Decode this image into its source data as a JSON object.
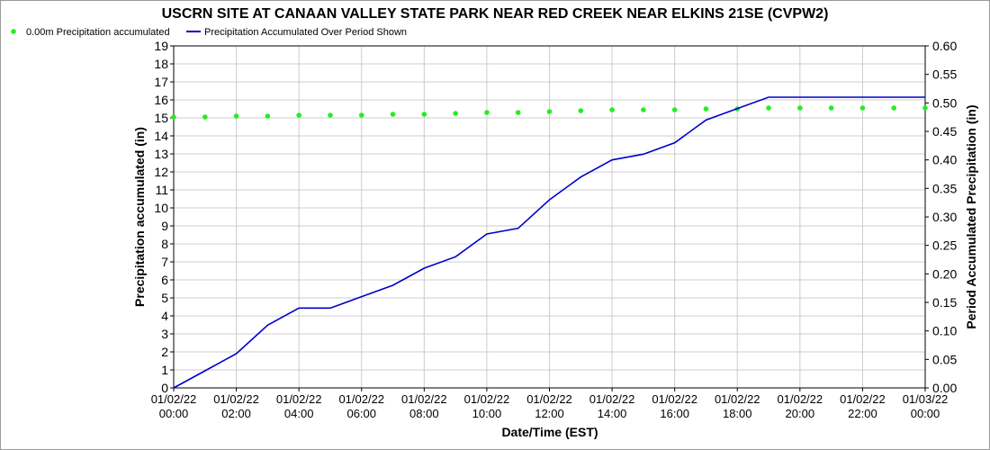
{
  "chart_data": {
    "type": "line",
    "title": "USCRN SITE AT CANAAN VALLEY STATE PARK NEAR RED CREEK NEAR ELKINS 21SE (CVPW2)",
    "xlabel": "Date/Time (EST)",
    "ylabel_left": "Precipitation accumulated (in)",
    "ylabel_right": "Period Accumulated Precipitation (in)",
    "ylim_left": [
      0,
      19
    ],
    "ylim_right": [
      0,
      0.6
    ],
    "yticks_left": [
      "0",
      "1",
      "2",
      "3",
      "4",
      "5",
      "6",
      "7",
      "8",
      "9",
      "10",
      "11",
      "12",
      "13",
      "14",
      "15",
      "16",
      "17",
      "18",
      "19"
    ],
    "yticks_right": [
      "0.00",
      "0.05",
      "0.10",
      "0.15",
      "0.20",
      "0.25",
      "0.30",
      "0.35",
      "0.40",
      "0.45",
      "0.50",
      "0.55",
      "0.60"
    ],
    "x_hours_range": [
      0,
      24
    ],
    "x_tick_labels": [
      {
        "date": "01/02/22",
        "time": "00:00"
      },
      {
        "date": "01/02/22",
        "time": "02:00"
      },
      {
        "date": "01/02/22",
        "time": "04:00"
      },
      {
        "date": "01/02/22",
        "time": "06:00"
      },
      {
        "date": "01/02/22",
        "time": "08:00"
      },
      {
        "date": "01/02/22",
        "time": "10:00"
      },
      {
        "date": "01/02/22",
        "time": "12:00"
      },
      {
        "date": "01/02/22",
        "time": "14:00"
      },
      {
        "date": "01/02/22",
        "time": "16:00"
      },
      {
        "date": "01/02/22",
        "time": "18:00"
      },
      {
        "date": "01/02/22",
        "time": "20:00"
      },
      {
        "date": "01/02/22",
        "time": "22:00"
      },
      {
        "date": "01/03/22",
        "time": "00:00"
      }
    ],
    "grid": true,
    "legend_position": "top-left",
    "series": [
      {
        "name": "0.00m Precipitation accumulated",
        "kind": "scatter",
        "axis": "left",
        "color": "#22ee22",
        "x": [
          0,
          1,
          2,
          3,
          4,
          5,
          6,
          7,
          8,
          9,
          10,
          11,
          12,
          13,
          14,
          15,
          16,
          17,
          18,
          19,
          20,
          21,
          22,
          23,
          24
        ],
        "y": [
          15.05,
          15.05,
          15.1,
          15.1,
          15.15,
          15.15,
          15.15,
          15.2,
          15.2,
          15.25,
          15.3,
          15.3,
          15.35,
          15.4,
          15.45,
          15.45,
          15.45,
          15.5,
          15.5,
          15.55,
          15.55,
          15.55,
          15.55,
          15.55,
          15.55
        ]
      },
      {
        "name": "Precipitation Accumulated Over Period Shown",
        "kind": "line",
        "axis": "right",
        "color": "#0000cc",
        "x": [
          0,
          1,
          2,
          3,
          4,
          5,
          6,
          7,
          8,
          9,
          10,
          11,
          12,
          13,
          14,
          15,
          16,
          17,
          18,
          19,
          20,
          21,
          22,
          23,
          24
        ],
        "y": [
          0.0,
          0.03,
          0.06,
          0.11,
          0.14,
          0.14,
          0.16,
          0.18,
          0.21,
          0.23,
          0.27,
          0.28,
          0.33,
          0.37,
          0.4,
          0.41,
          0.43,
          0.47,
          0.49,
          0.51,
          0.51,
          0.51,
          0.51,
          0.51,
          0.51
        ]
      }
    ]
  }
}
